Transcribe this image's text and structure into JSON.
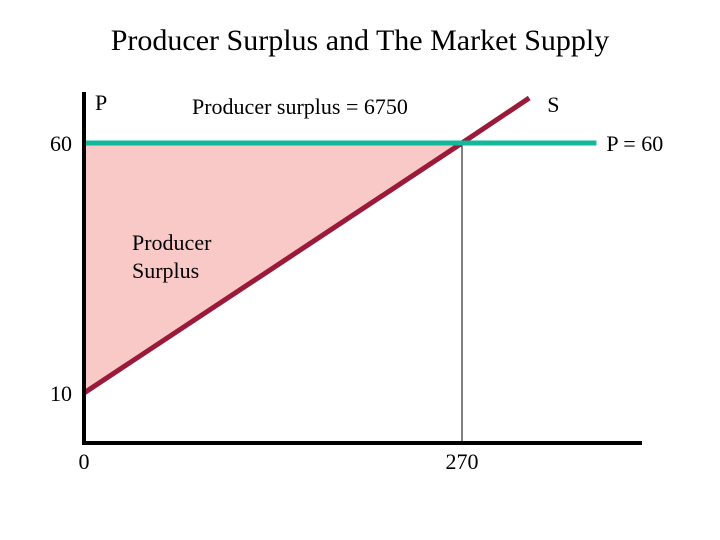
{
  "chart_data": {
    "type": "line",
    "title": "Producer Surplus and The Market Supply",
    "ylabel": "P",
    "xlabel": "",
    "xlim": [
      0,
      400
    ],
    "ylim": [
      0,
      70
    ],
    "x_ticks": [
      {
        "value": 0,
        "label": "0"
      },
      {
        "value": 270,
        "label": "270"
      }
    ],
    "y_ticks": [
      {
        "value": 10,
        "label": "10"
      },
      {
        "value": 60,
        "label": "60"
      }
    ],
    "series": [
      {
        "name": "S",
        "color": "#9b1a3a",
        "points": [
          [
            0,
            10
          ],
          [
            270,
            60
          ],
          [
            318,
            69
          ]
        ]
      },
      {
        "name": "P = 60",
        "color": "#12b89a",
        "points": [
          [
            0,
            60
          ],
          [
            366,
            60
          ]
        ]
      }
    ],
    "shaded_region": {
      "polygon": [
        [
          0,
          10
        ],
        [
          0,
          60
        ],
        [
          270,
          60
        ]
      ],
      "color": "#f9c9c7",
      "label_lines": [
        "Producer",
        "Surplus"
      ]
    },
    "guide_line": {
      "x": 270,
      "y_from": 0,
      "y_to": 60
    },
    "annotation": "Producer surplus = 6750",
    "grid": false,
    "legend": "none"
  }
}
